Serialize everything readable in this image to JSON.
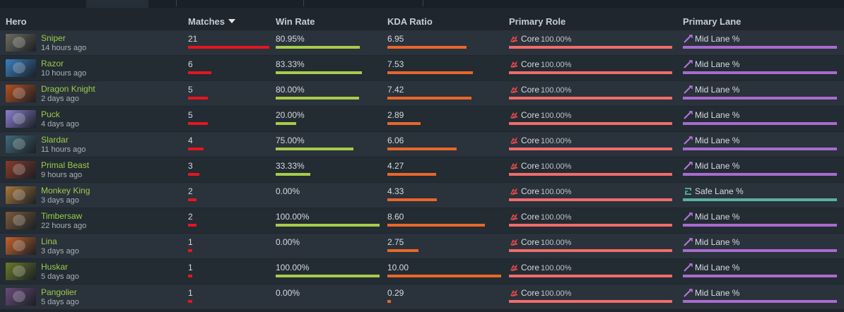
{
  "columns": {
    "hero": "Hero",
    "matches": "Matches",
    "win_rate": "Win Rate",
    "kda": "KDA Ratio",
    "role": "Primary Role",
    "lane": "Primary Lane"
  },
  "colors": {
    "matches_bar": "#e5161e",
    "winrate_bar": "#a6cc4a",
    "kda_bar": "#e8672a",
    "role_bar": "#f16c6b",
    "mid_lane_bar": "#a96bcf",
    "safe_lane_bar": "#58b3a0",
    "hero_name": "#9ccc4a"
  },
  "rows": [
    {
      "hero": "Sniper",
      "time": "14 hours ago",
      "matches": "21",
      "win_rate": "80.95%",
      "kda": "6.95",
      "role": "Core",
      "role_pct": "100.00%",
      "lane": "Mid Lane %",
      "lane_icon": "mid-lane-icon",
      "matches_fill": 1.0,
      "winrate_fill": 0.81,
      "kda_fill": 0.695,
      "portrait_color": "#6d6a5e"
    },
    {
      "hero": "Razor",
      "time": "10 hours ago",
      "matches": "6",
      "win_rate": "83.33%",
      "kda": "7.53",
      "role": "Core",
      "role_pct": "100.00%",
      "lane": "Mid Lane %",
      "lane_icon": "mid-lane-icon",
      "matches_fill": 0.29,
      "winrate_fill": 0.833,
      "kda_fill": 0.753,
      "portrait_color": "#3a7fc0"
    },
    {
      "hero": "Dragon Knight",
      "time": "2 days ago",
      "matches": "5",
      "win_rate": "80.00%",
      "kda": "7.42",
      "role": "Core",
      "role_pct": "100.00%",
      "lane": "Mid Lane %",
      "lane_icon": "mid-lane-icon",
      "matches_fill": 0.24,
      "winrate_fill": 0.8,
      "kda_fill": 0.742,
      "portrait_color": "#b5501f"
    },
    {
      "hero": "Puck",
      "time": "4 days ago",
      "matches": "5",
      "win_rate": "20.00%",
      "kda": "2.89",
      "role": "Core",
      "role_pct": "100.00%",
      "lane": "Mid Lane %",
      "lane_icon": "mid-lane-icon",
      "matches_fill": 0.24,
      "winrate_fill": 0.2,
      "kda_fill": 0.289,
      "portrait_color": "#8b7fd0"
    },
    {
      "hero": "Slardar",
      "time": "11 hours ago",
      "matches": "4",
      "win_rate": "75.00%",
      "kda": "6.06",
      "role": "Core",
      "role_pct": "100.00%",
      "lane": "Mid Lane %",
      "lane_icon": "mid-lane-icon",
      "matches_fill": 0.19,
      "winrate_fill": 0.75,
      "kda_fill": 0.606,
      "portrait_color": "#3f6a78"
    },
    {
      "hero": "Primal Beast",
      "time": "9 hours ago",
      "matches": "3",
      "win_rate": "33.33%",
      "kda": "4.27",
      "role": "Core",
      "role_pct": "100.00%",
      "lane": "Mid Lane %",
      "lane_icon": "mid-lane-icon",
      "matches_fill": 0.14,
      "winrate_fill": 0.333,
      "kda_fill": 0.427,
      "portrait_color": "#8a3a2a"
    },
    {
      "hero": "Monkey King",
      "time": "3 days ago",
      "matches": "2",
      "win_rate": "0.00%",
      "kda": "4.33",
      "role": "Core",
      "role_pct": "100.00%",
      "lane": "Safe Lane %",
      "lane_icon": "safe-lane-icon",
      "matches_fill": 0.1,
      "winrate_fill": 0.0,
      "kda_fill": 0.433,
      "portrait_color": "#a8773a"
    },
    {
      "hero": "Timbersaw",
      "time": "22 hours ago",
      "matches": "2",
      "win_rate": "100.00%",
      "kda": "8.60",
      "role": "Core",
      "role_pct": "100.00%",
      "lane": "Mid Lane %",
      "lane_icon": "mid-lane-icon",
      "matches_fill": 0.1,
      "winrate_fill": 1.0,
      "kda_fill": 0.86,
      "portrait_color": "#7a5a3a"
    },
    {
      "hero": "Lina",
      "time": "3 days ago",
      "matches": "1",
      "win_rate": "0.00%",
      "kda": "2.75",
      "role": "Core",
      "role_pct": "100.00%",
      "lane": "Mid Lane %",
      "lane_icon": "mid-lane-icon",
      "matches_fill": 0.05,
      "winrate_fill": 0.0,
      "kda_fill": 0.275,
      "portrait_color": "#c4622a"
    },
    {
      "hero": "Huskar",
      "time": "5 days ago",
      "matches": "1",
      "win_rate": "100.00%",
      "kda": "10.00",
      "role": "Core",
      "role_pct": "100.00%",
      "lane": "Mid Lane %",
      "lane_icon": "mid-lane-icon",
      "matches_fill": 0.05,
      "winrate_fill": 1.0,
      "kda_fill": 1.0,
      "portrait_color": "#6a7a2a"
    },
    {
      "hero": "Pangolier",
      "time": "5 days ago",
      "matches": "1",
      "win_rate": "0.00%",
      "kda": "0.29",
      "role": "Core",
      "role_pct": "100.00%",
      "lane": "Mid Lane %",
      "lane_icon": "mid-lane-icon",
      "matches_fill": 0.05,
      "winrate_fill": 0.0,
      "kda_fill": 0.029,
      "portrait_color": "#6a4a7a"
    }
  ]
}
